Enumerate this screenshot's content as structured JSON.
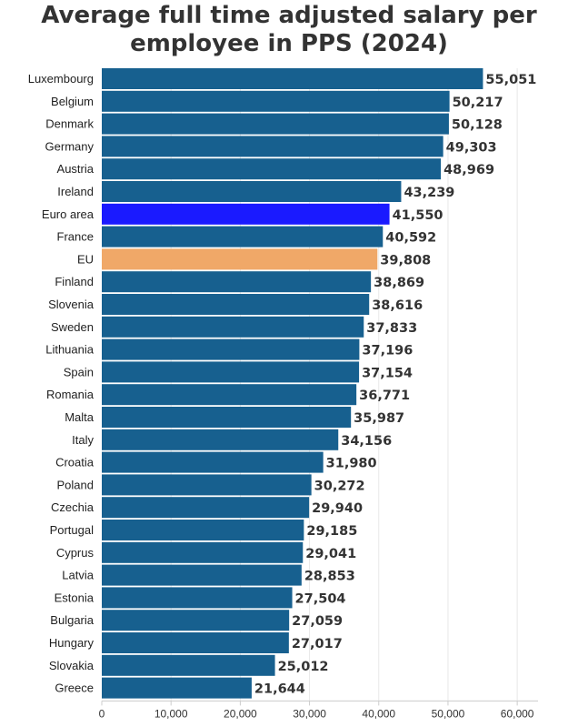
{
  "chart_data": {
    "type": "bar",
    "orientation": "horizontal",
    "title_lines": [
      "Average full time adjusted salary per",
      "employee in PPS (2024)"
    ],
    "xlabel": "",
    "ylabel": "",
    "xlim": [
      0,
      63000
    ],
    "x_ticks": [
      0,
      10000,
      20000,
      30000,
      40000,
      50000,
      60000
    ],
    "x_tick_labels": [
      "0",
      "10,000",
      "20,000",
      "30,000",
      "40,000",
      "50,000",
      "60,000"
    ],
    "grid": true,
    "legend": "none",
    "categories": [
      "Luxembourg",
      "Belgium",
      "Denmark",
      "Germany",
      "Austria",
      "Ireland",
      "Euro area",
      "France",
      "EU",
      "Finland",
      "Slovenia",
      "Sweden",
      "Lithuania",
      "Spain",
      "Romania",
      "Malta",
      "Italy",
      "Croatia",
      "Poland",
      "Czechia",
      "Portugal",
      "Cyprus",
      "Latvia",
      "Estonia",
      "Bulgaria",
      "Hungary",
      "Slovakia",
      "Greece"
    ],
    "values": [
      55051,
      50217,
      50128,
      49303,
      48969,
      43239,
      41550,
      40592,
      39808,
      38869,
      38616,
      37833,
      37196,
      37154,
      36771,
      35987,
      34156,
      31980,
      30272,
      29940,
      29185,
      29041,
      28853,
      27504,
      27059,
      27017,
      25012,
      21644
    ],
    "value_labels": [
      "55,051",
      "50,217",
      "50,128",
      "49,303",
      "48,969",
      "43,239",
      "41,550",
      "40,592",
      "39,808",
      "38,869",
      "38,616",
      "37,833",
      "37,196",
      "37,154",
      "36,771",
      "35,987",
      "34,156",
      "31,980",
      "30,272",
      "29,940",
      "29,185",
      "29,041",
      "28,853",
      "27,504",
      "27,059",
      "27,017",
      "25,012",
      "21,644"
    ],
    "colors": {
      "default": "#17608f",
      "highlights": {
        "Euro area": "#1a1aff",
        "EU": "#f0a868"
      }
    }
  }
}
